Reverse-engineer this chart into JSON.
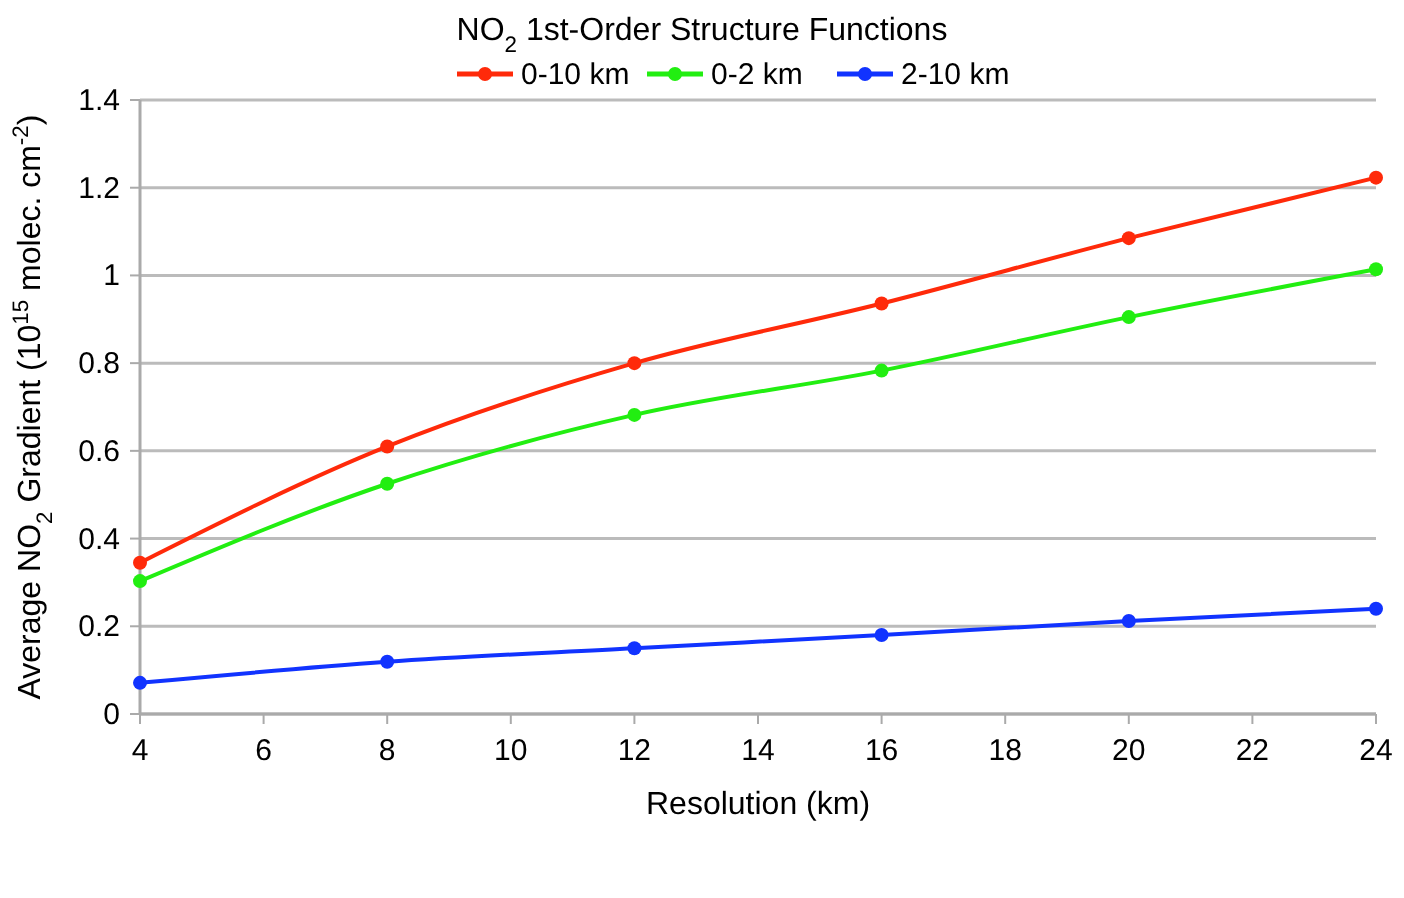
{
  "chart_data": {
    "type": "line",
    "title": "NO$_{2}$ 1st-Order Structure Functions",
    "xlabel": "Resolution (km)",
    "ylabel": "Average NO$_{2}$ Gradient (10$^{15}$ molec. cm$^{-2}$)",
    "x": [
      4,
      8,
      12,
      16,
      20,
      24
    ],
    "series": [
      {
        "name": "0-10 km",
        "color": "#ff2a0a",
        "values": [
          0.345,
          0.61,
          0.8,
          0.936,
          1.085,
          1.223
        ]
      },
      {
        "name": "0-2 km",
        "color": "#22ee11",
        "values": [
          0.303,
          0.525,
          0.682,
          0.783,
          0.905,
          1.014
        ]
      },
      {
        "name": "2-10 km",
        "color": "#1133ff",
        "values": [
          0.071,
          0.119,
          0.15,
          0.18,
          0.212,
          0.24
        ]
      }
    ],
    "xlim": [
      4,
      24
    ],
    "xticks": [
      4,
      6,
      8,
      10,
      12,
      14,
      16,
      18,
      20,
      22,
      24
    ],
    "ylim": [
      0,
      1.4
    ],
    "yticks": [
      0,
      0.2,
      0.4,
      0.6,
      0.8,
      1,
      1.2,
      1.4
    ],
    "grid": "y",
    "legend": "top",
    "marker": "circle",
    "line_style": "solid"
  }
}
